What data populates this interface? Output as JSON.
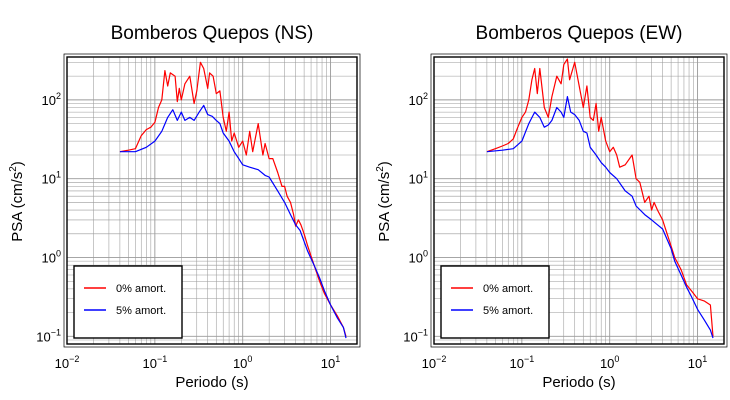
{
  "charts": [
    {
      "title": "Bomberos Quepos (NS)",
      "xlabel": "Periodo (s)",
      "ylabel_main": "PSA (cm/s",
      "ylabel_sup": "2",
      "ylabel_end": ")",
      "legend": [
        "0% amort.",
        "5% amort."
      ]
    },
    {
      "title": "Bomberos Quepos (EW)",
      "xlabel": "Periodo (s)",
      "ylabel_main": "PSA (cm/s",
      "ylabel_sup": "2",
      "ylabel_end": ")",
      "legend": [
        "0% amort.",
        "5% amort."
      ]
    }
  ],
  "chart_data": [
    {
      "type": "line",
      "title": "Bomberos Quepos (NS)",
      "xlabel": "Periodo (s)",
      "ylabel": "PSA (cm/s2)",
      "xscale": "log",
      "yscale": "log",
      "xlim": [
        0.01,
        20
      ],
      "ylim": [
        0.08,
        350
      ],
      "xticks": [
        0.01,
        0.1,
        1,
        10
      ],
      "xtick_labels": [
        {
          "base": "10",
          "exp": "−2"
        },
        {
          "base": "10",
          "exp": "−1"
        },
        {
          "base": "10",
          "exp": "0"
        },
        {
          "base": "10",
          "exp": "1"
        }
      ],
      "yticks": [
        0.1,
        1,
        10,
        100
      ],
      "ytick_labels": [
        {
          "base": "10",
          "exp": "−1"
        },
        {
          "base": "10",
          "exp": "0"
        },
        {
          "base": "10",
          "exp": "1"
        },
        {
          "base": "10",
          "exp": "2"
        }
      ],
      "grid": true,
      "legend_position": "bottom-left",
      "series": [
        {
          "name": "0% amort.",
          "color": "#ff0000",
          "points": [
            [
              0.04,
              22
            ],
            [
              0.05,
              23
            ],
            [
              0.06,
              24
            ],
            [
              0.07,
              35
            ],
            [
              0.08,
              42
            ],
            [
              0.09,
              45
            ],
            [
              0.1,
              52
            ],
            [
              0.11,
              80
            ],
            [
              0.12,
              100
            ],
            [
              0.13,
              235
            ],
            [
              0.14,
              150
            ],
            [
              0.15,
              220
            ],
            [
              0.17,
              200
            ],
            [
              0.18,
              95
            ],
            [
              0.19,
              140
            ],
            [
              0.2,
              100
            ],
            [
              0.22,
              160
            ],
            [
              0.25,
              200
            ],
            [
              0.28,
              90
            ],
            [
              0.3,
              130
            ],
            [
              0.33,
              300
            ],
            [
              0.36,
              250
            ],
            [
              0.4,
              140
            ],
            [
              0.42,
              220
            ],
            [
              0.46,
              200
            ],
            [
              0.5,
              120
            ],
            [
              0.55,
              130
            ],
            [
              0.6,
              60
            ],
            [
              0.65,
              40
            ],
            [
              0.7,
              70
            ],
            [
              0.75,
              30
            ],
            [
              0.8,
              38
            ],
            [
              0.9,
              25
            ],
            [
              1.0,
              30
            ],
            [
              1.1,
              20
            ],
            [
              1.2,
              40
            ],
            [
              1.3,
              22
            ],
            [
              1.5,
              50
            ],
            [
              1.7,
              20
            ],
            [
              1.8,
              28
            ],
            [
              2.0,
              18
            ],
            [
              2.2,
              18
            ],
            [
              2.5,
              12
            ],
            [
              2.8,
              8
            ],
            [
              3.0,
              8
            ],
            [
              3.2,
              6
            ],
            [
              3.5,
              5
            ],
            [
              3.8,
              3.5
            ],
            [
              4.0,
              2.5
            ],
            [
              4.3,
              3
            ],
            [
              4.6,
              2.6
            ],
            [
              5.0,
              2
            ],
            [
              5.5,
              1.4
            ],
            [
              6.5,
              0.8
            ],
            [
              7.5,
              0.5
            ],
            [
              8.5,
              0.35
            ],
            [
              10,
              0.25
            ],
            [
              12,
              0.18
            ],
            [
              14,
              0.13
            ],
            [
              15,
              0.1
            ]
          ]
        },
        {
          "name": "5% amort.",
          "color": "#0000ff",
          "points": [
            [
              0.04,
              22
            ],
            [
              0.06,
              22
            ],
            [
              0.08,
              25
            ],
            [
              0.1,
              30
            ],
            [
              0.12,
              40
            ],
            [
              0.14,
              60
            ],
            [
              0.16,
              75
            ],
            [
              0.18,
              55
            ],
            [
              0.2,
              70
            ],
            [
              0.22,
              55
            ],
            [
              0.25,
              60
            ],
            [
              0.28,
              55
            ],
            [
              0.32,
              70
            ],
            [
              0.36,
              85
            ],
            [
              0.4,
              65
            ],
            [
              0.45,
              62
            ],
            [
              0.5,
              55
            ],
            [
              0.55,
              50
            ],
            [
              0.6,
              38
            ],
            [
              0.7,
              30
            ],
            [
              0.8,
              22
            ],
            [
              0.9,
              18
            ],
            [
              1.0,
              15
            ],
            [
              1.2,
              14
            ],
            [
              1.5,
              13
            ],
            [
              1.8,
              11
            ],
            [
              2.0,
              10.5
            ],
            [
              2.5,
              7
            ],
            [
              3.0,
              5
            ],
            [
              3.5,
              3.5
            ],
            [
              4.0,
              2.6
            ],
            [
              4.5,
              2.2
            ],
            [
              5.0,
              1.6
            ],
            [
              5.5,
              1.2
            ],
            [
              6.5,
              0.8
            ],
            [
              7.5,
              0.55
            ],
            [
              8.5,
              0.38
            ],
            [
              10,
              0.25
            ],
            [
              12,
              0.17
            ],
            [
              14,
              0.13
            ],
            [
              15,
              0.095
            ]
          ]
        }
      ]
    },
    {
      "type": "line",
      "title": "Bomberos Quepos (EW)",
      "xlabel": "Periodo (s)",
      "ylabel": "PSA (cm/s2)",
      "xscale": "log",
      "yscale": "log",
      "xlim": [
        0.01,
        20
      ],
      "ylim": [
        0.08,
        350
      ],
      "xticks": [
        0.01,
        0.1,
        1,
        10
      ],
      "xtick_labels": [
        {
          "base": "10",
          "exp": "−2"
        },
        {
          "base": "10",
          "exp": "−1"
        },
        {
          "base": "10",
          "exp": "0"
        },
        {
          "base": "10",
          "exp": "1"
        }
      ],
      "yticks": [
        0.1,
        1,
        10,
        100
      ],
      "ytick_labels": [
        {
          "base": "10",
          "exp": "−1"
        },
        {
          "base": "10",
          "exp": "0"
        },
        {
          "base": "10",
          "exp": "1"
        },
        {
          "base": "10",
          "exp": "2"
        }
      ],
      "grid": true,
      "legend_position": "bottom-left",
      "series": [
        {
          "name": "0% amort.",
          "color": "#ff0000",
          "points": [
            [
              0.04,
              22
            ],
            [
              0.05,
              24
            ],
            [
              0.06,
              26
            ],
            [
              0.07,
              28
            ],
            [
              0.08,
              32
            ],
            [
              0.09,
              45
            ],
            [
              0.1,
              60
            ],
            [
              0.11,
              70
            ],
            [
              0.12,
              100
            ],
            [
              0.13,
              180
            ],
            [
              0.14,
              250
            ],
            [
              0.15,
              120
            ],
            [
              0.16,
              250
            ],
            [
              0.18,
              80
            ],
            [
              0.2,
              60
            ],
            [
              0.22,
              110
            ],
            [
              0.25,
              200
            ],
            [
              0.28,
              160
            ],
            [
              0.3,
              280
            ],
            [
              0.33,
              330
            ],
            [
              0.35,
              180
            ],
            [
              0.4,
              300
            ],
            [
              0.45,
              150
            ],
            [
              0.5,
              80
            ],
            [
              0.55,
              150
            ],
            [
              0.6,
              60
            ],
            [
              0.65,
              55
            ],
            [
              0.7,
              90
            ],
            [
              0.75,
              40
            ],
            [
              0.8,
              60
            ],
            [
              0.9,
              30
            ],
            [
              1.0,
              22
            ],
            [
              1.1,
              25
            ],
            [
              1.2,
              20
            ],
            [
              1.3,
              14
            ],
            [
              1.5,
              15
            ],
            [
              1.8,
              20
            ],
            [
              2.0,
              10
            ],
            [
              2.2,
              9
            ],
            [
              2.5,
              5
            ],
            [
              2.8,
              6
            ],
            [
              3.0,
              4
            ],
            [
              3.2,
              5
            ],
            [
              3.5,
              4
            ],
            [
              4.0,
              3
            ],
            [
              4.5,
              2
            ],
            [
              5.0,
              1.4
            ],
            [
              5.5,
              1
            ],
            [
              6.5,
              0.7
            ],
            [
              7.5,
              0.45
            ],
            [
              8.5,
              0.38
            ],
            [
              10,
              0.3
            ],
            [
              12,
              0.28
            ],
            [
              14,
              0.25
            ],
            [
              15,
              0.1
            ]
          ]
        },
        {
          "name": "5% amort.",
          "color": "#0000ff",
          "points": [
            [
              0.04,
              22
            ],
            [
              0.06,
              23
            ],
            [
              0.08,
              24
            ],
            [
              0.1,
              30
            ],
            [
              0.12,
              50
            ],
            [
              0.14,
              70
            ],
            [
              0.16,
              60
            ],
            [
              0.18,
              45
            ],
            [
              0.2,
              48
            ],
            [
              0.22,
              55
            ],
            [
              0.25,
              80
            ],
            [
              0.28,
              70
            ],
            [
              0.3,
              60
            ],
            [
              0.33,
              110
            ],
            [
              0.36,
              70
            ],
            [
              0.4,
              65
            ],
            [
              0.45,
              55
            ],
            [
              0.5,
              40
            ],
            [
              0.55,
              38
            ],
            [
              0.6,
              25
            ],
            [
              0.7,
              20
            ],
            [
              0.8,
              16
            ],
            [
              0.9,
              14
            ],
            [
              1.0,
              12
            ],
            [
              1.2,
              10
            ],
            [
              1.5,
              7
            ],
            [
              1.8,
              6
            ],
            [
              2.0,
              4.5
            ],
            [
              2.5,
              3.5
            ],
            [
              3.0,
              3
            ],
            [
              3.5,
              2.6
            ],
            [
              4.0,
              2.3
            ],
            [
              4.5,
              1.7
            ],
            [
              5.0,
              1.3
            ],
            [
              5.5,
              0.9
            ],
            [
              6.5,
              0.6
            ],
            [
              7.5,
              0.42
            ],
            [
              8.5,
              0.32
            ],
            [
              10,
              0.22
            ],
            [
              12,
              0.16
            ],
            [
              14,
              0.12
            ],
            [
              15,
              0.095
            ]
          ]
        }
      ]
    }
  ]
}
